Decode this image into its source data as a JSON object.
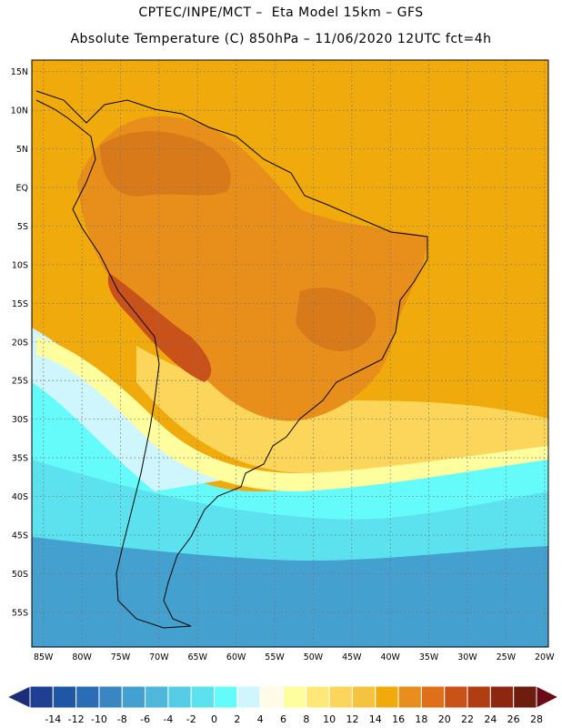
{
  "title_line1": "CPTEC/INPE/MCT –  Eta Model 15km – GFS",
  "title_line2": "Absolute Temperature (C) 850hPa – 11/06/2020 12UTC fct=4h",
  "lat_labels": [
    "15N",
    "10N",
    "5N",
    "EQ",
    "5S",
    "10S",
    "15S",
    "20S",
    "25S",
    "30S",
    "35S",
    "40S",
    "45S",
    "50S",
    "55S"
  ],
  "lat_values": [
    15,
    10,
    5,
    0,
    -5,
    -10,
    -15,
    -20,
    -25,
    -30,
    -35,
    -40,
    -45,
    -50,
    -55
  ],
  "lon_labels": [
    "85W",
    "80W",
    "75W",
    "70W",
    "65W",
    "60W",
    "55W",
    "50W",
    "45W",
    "40W",
    "35W",
    "30W",
    "25W",
    "20W"
  ],
  "lon_values": [
    -85,
    -80,
    -75,
    -70,
    -65,
    -60,
    -55,
    -50,
    -45,
    -40,
    -35,
    -30,
    -25,
    -20
  ],
  "colorbar": {
    "labels": [
      "-14",
      "-12",
      "-10",
      "-8",
      "-6",
      "-4",
      "-2",
      "0",
      "2",
      "4",
      "6",
      "8",
      "10",
      "12",
      "14",
      "16",
      "18",
      "20",
      "22",
      "24",
      "26",
      "28"
    ],
    "colors": [
      "#1f3f93",
      "#1f56a5",
      "#2a6db5",
      "#3a86c2",
      "#43a0cf",
      "#4fb6dc",
      "#55cde4",
      "#5ce2ee",
      "#66fbfb",
      "#cff6fd",
      "#fffbe7",
      "#fefe9f",
      "#fde878",
      "#fbd65a",
      "#f5c43f",
      "#f0aa0b",
      "#e78f1a",
      "#e06f1a",
      "#c9521b",
      "#b13d13",
      "#8c2712",
      "#6e1c0e"
    ],
    "under_color": "#1a2f78",
    "over_color": "#6a0a18"
  },
  "field_colors": {
    "deep_south": "#2a6db5",
    "south": "#43a0cf",
    "mid_south": "#5ce2ee",
    "cyan": "#66fbfb",
    "cool": "#cff6fd",
    "mild": "#fefe9f",
    "warm": "#fbd65a",
    "base": "#f0aa0b",
    "hot": "#e78f1a",
    "hotter": "#d97a1a",
    "andes_hot": "#c9521b"
  }
}
